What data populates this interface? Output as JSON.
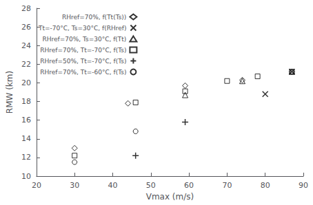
{
  "chart_data": {
    "type": "scatter",
    "xlabel": "Vmax (m/s)",
    "ylabel": "RMW (km)",
    "xlim": [
      20,
      90
    ],
    "ylim": [
      10,
      28
    ],
    "xticks": [
      20,
      30,
      40,
      50,
      60,
      70,
      80,
      90
    ],
    "yticks": [
      10,
      12,
      14,
      16,
      18,
      20,
      22,
      24,
      26,
      28
    ],
    "grid": false,
    "legend": "upper left",
    "series": [
      {
        "name": "RHref=70%, f(Tt(Ts))",
        "color": "black",
        "marker": "diamond",
        "x": [
          30,
          44,
          59,
          74,
          87
        ],
        "values": [
          13.0,
          17.8,
          19.7,
          20.3,
          21.2
        ]
      },
      {
        "name": "Tt=-70°C, Ts=30°C, f(RHref)",
        "color": "black",
        "marker": "x",
        "x": [
          80,
          87
        ],
        "values": [
          18.8,
          21.2
        ]
      },
      {
        "name": "RHref=70%, Ts=30°C, f(Tt)",
        "color": "black",
        "marker": "triangle",
        "x": [
          59,
          74,
          87
        ],
        "values": [
          18.7,
          20.2,
          21.2
        ]
      },
      {
        "name": "RHref=70%, Tt=-70°C, f(Ts)",
        "color": "black",
        "marker": "square",
        "x": [
          30,
          46,
          59,
          70,
          78,
          87
        ],
        "values": [
          12.2,
          17.9,
          19.1,
          20.2,
          20.7,
          21.2
        ]
      },
      {
        "name": "RHref=50%, Tt=-70°C, f(Ts)",
        "color": "black",
        "marker": "plus",
        "x": [
          46,
          59
        ],
        "values": [
          12.2,
          15.8
        ]
      },
      {
        "name": "RHref=70%, Tt=-60°C, f(Ts)",
        "color": "black",
        "marker": "circle",
        "x": [
          30,
          46
        ],
        "values": [
          11.5,
          14.8
        ]
      }
    ]
  }
}
